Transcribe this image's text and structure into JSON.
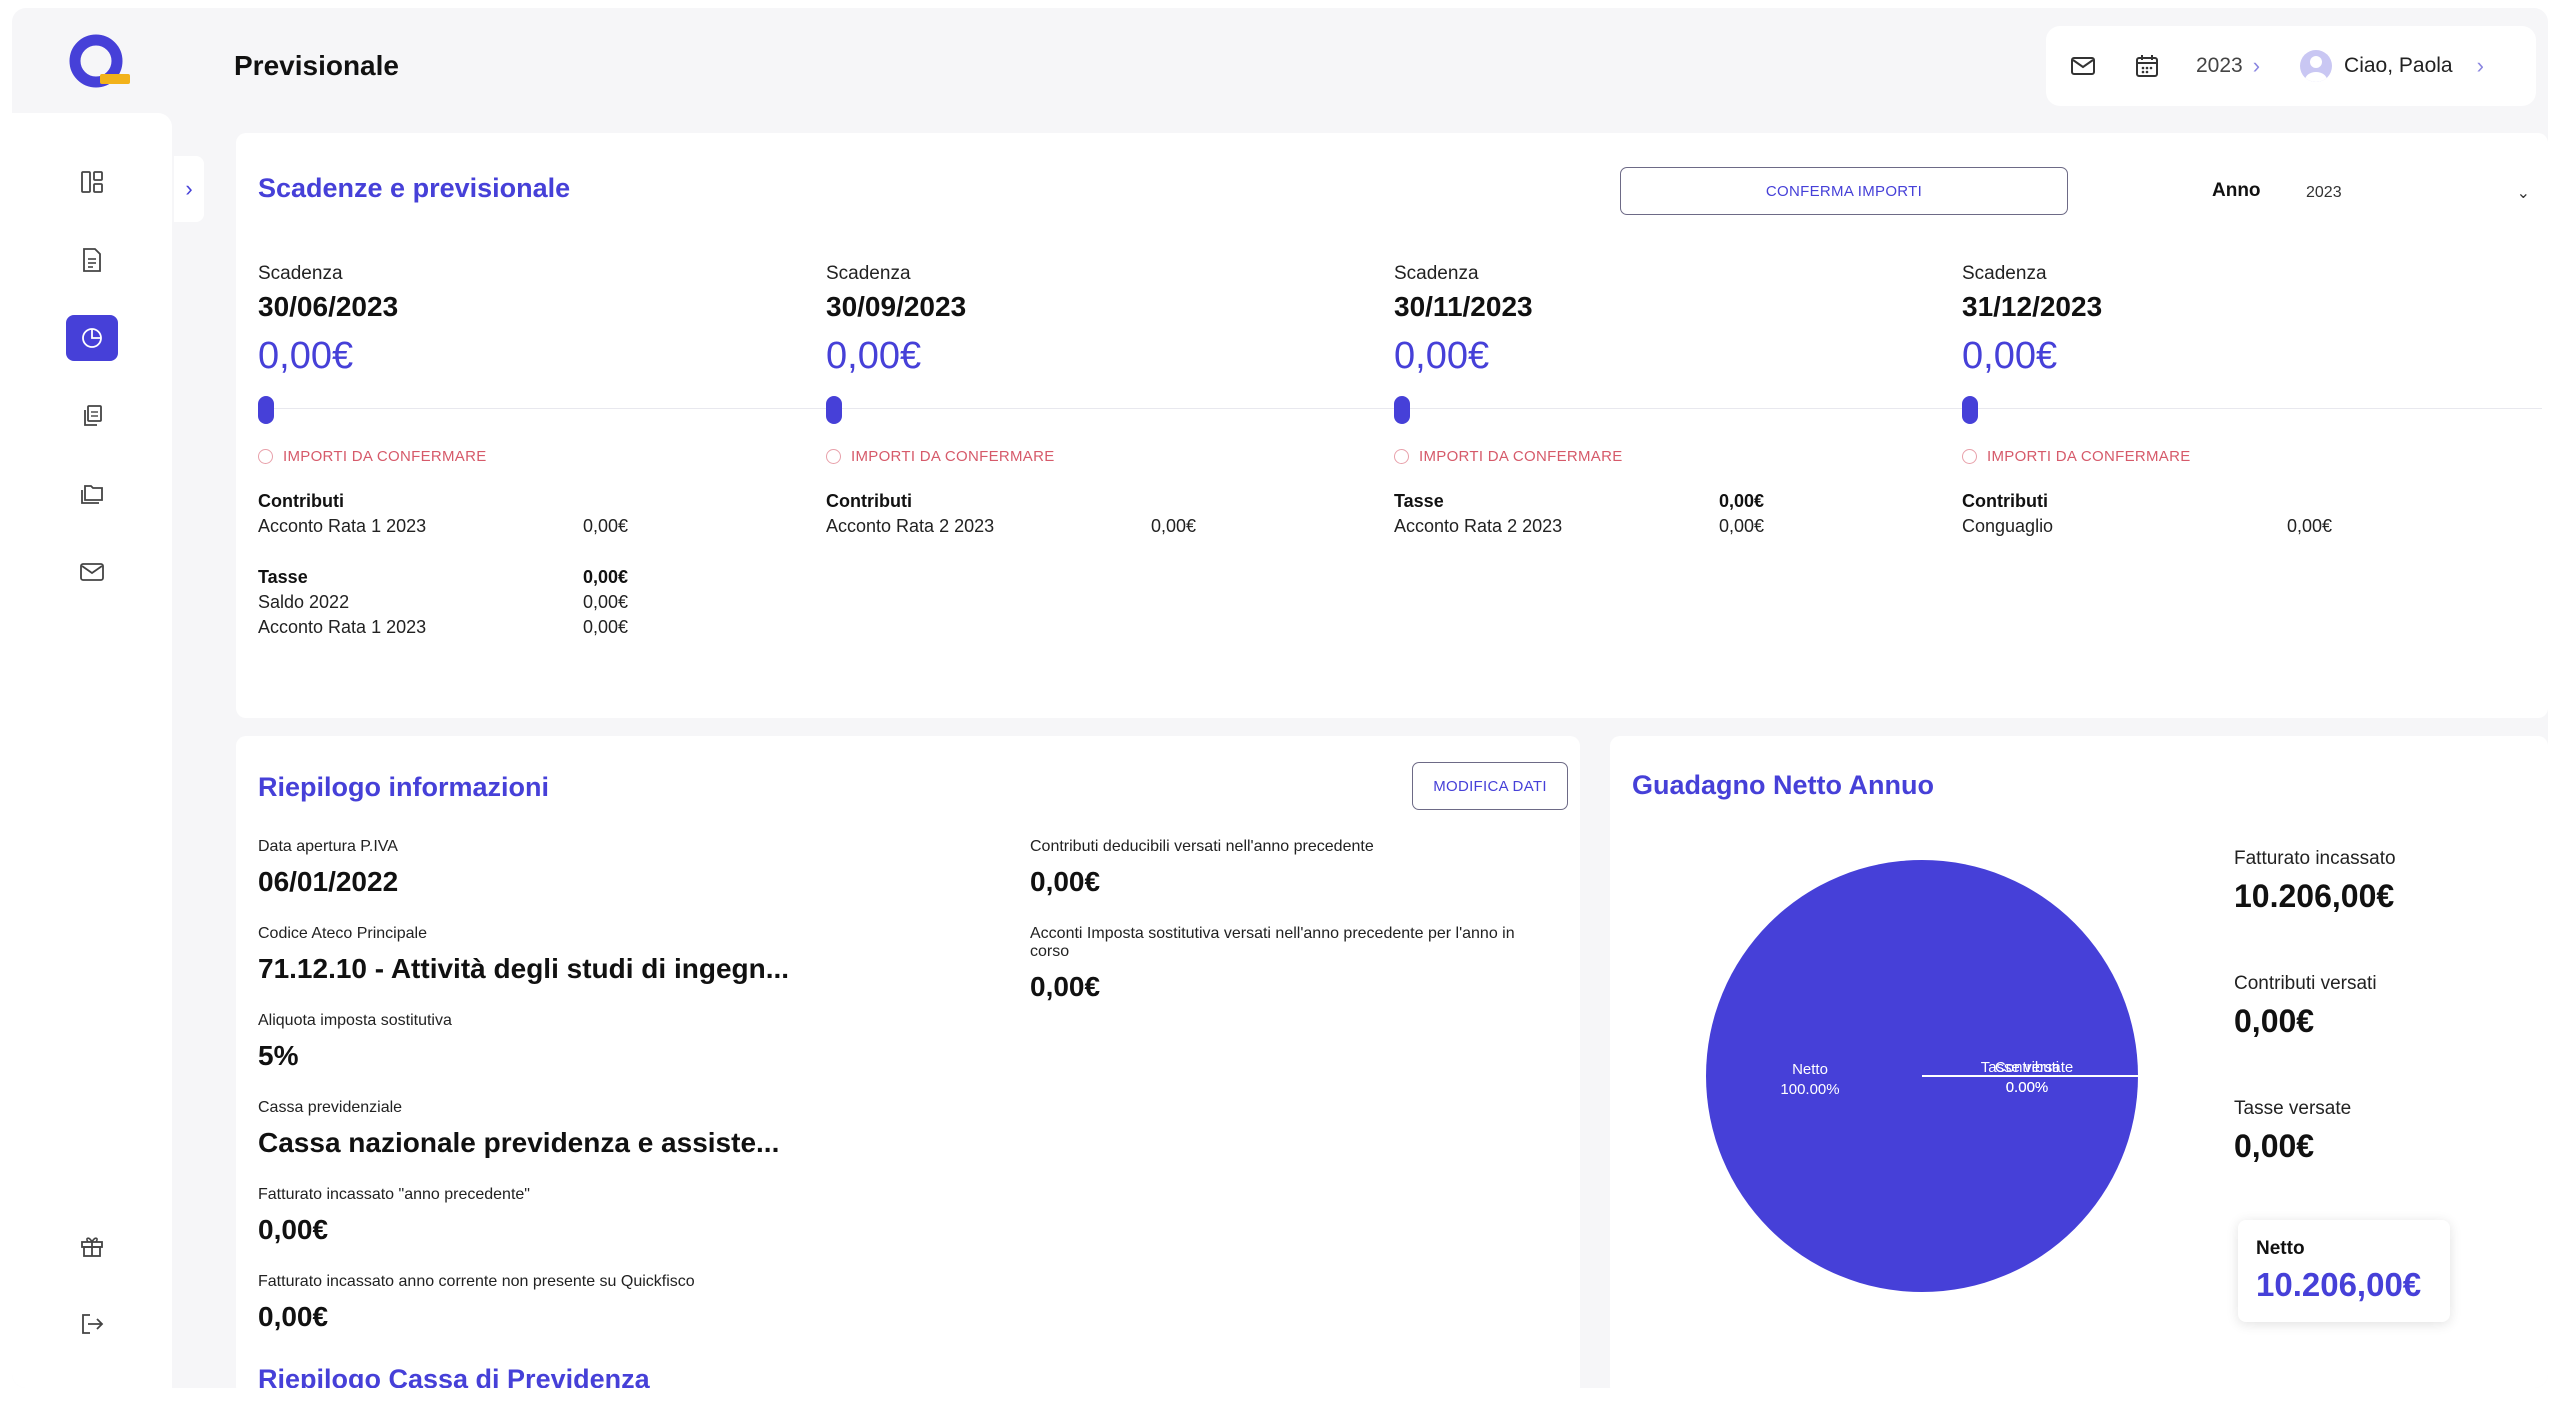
{
  "header": {
    "page_title": "Previsionale",
    "year": "2023",
    "greeting": "Ciao, Paola"
  },
  "sidebar": {
    "items": [
      {
        "icon": "dashboard-icon",
        "active": false
      },
      {
        "icon": "document-icon",
        "active": false
      },
      {
        "icon": "pie-chart-icon",
        "active": true
      },
      {
        "icon": "copy-documents-icon",
        "active": false
      },
      {
        "icon": "folder-icon",
        "active": false
      },
      {
        "icon": "mail-icon",
        "active": false
      }
    ],
    "bottom_items": [
      {
        "icon": "gift-icon"
      },
      {
        "icon": "logout-icon"
      }
    ]
  },
  "colors": {
    "accent": "#4640d8",
    "warning": "#d65a6a",
    "background": "#f6f6f8"
  },
  "scadenze": {
    "title": "Scadenze e previsionale",
    "confirm_button": "CONFERMA IMPORTI",
    "anno_label": "Anno",
    "anno_value": "2023",
    "deadlines": [
      {
        "label": "Scadenza",
        "date": "30/06/2023",
        "amount": "0,00€",
        "status": "IMPORTI DA CONFERMARE",
        "groups": [
          {
            "title": "Contributi",
            "total": "",
            "rows": [
              {
                "label": "Acconto Rata 1 2023",
                "value": "0,00€"
              }
            ]
          },
          {
            "title": "Tasse",
            "total": "0,00€",
            "rows": [
              {
                "label": "Saldo 2022",
                "value": "0,00€"
              },
              {
                "label": "Acconto Rata 1 2023",
                "value": "0,00€"
              }
            ]
          }
        ]
      },
      {
        "label": "Scadenza",
        "date": "30/09/2023",
        "amount": "0,00€",
        "status": "IMPORTI DA CONFERMARE",
        "groups": [
          {
            "title": "Contributi",
            "total": "",
            "rows": [
              {
                "label": "Acconto Rata 2 2023",
                "value": "0,00€"
              }
            ]
          }
        ]
      },
      {
        "label": "Scadenza",
        "date": "30/11/2023",
        "amount": "0,00€",
        "status": "IMPORTI DA CONFERMARE",
        "groups": [
          {
            "title": "Tasse",
            "total": "0,00€",
            "rows": [
              {
                "label": "Acconto Rata 2 2023",
                "value": "0,00€"
              }
            ]
          }
        ]
      },
      {
        "label": "Scadenza",
        "date": "31/12/2023",
        "amount": "0,00€",
        "status": "IMPORTI DA CONFERMARE",
        "groups": [
          {
            "title": "Contributi",
            "total": "",
            "rows": [
              {
                "label": "Conguaglio",
                "value": "0,00€"
              }
            ]
          }
        ]
      }
    ]
  },
  "riepilogo": {
    "title": "Riepilogo informazioni",
    "edit_button": "MODIFICA DATI",
    "left": [
      {
        "label": "Data apertura P.IVA",
        "value": "06/01/2022"
      },
      {
        "label": "Codice Ateco Principale",
        "value": "71.12.10 - Attività degli studi di ingegn..."
      },
      {
        "label": "Aliquota imposta sostitutiva",
        "value": "5%"
      },
      {
        "label": "Cassa previdenziale",
        "value": "Cassa nazionale previdenza e assiste..."
      },
      {
        "label": "Fatturato incassato \"anno precedente\"",
        "value": "0,00€"
      },
      {
        "label": "Fatturato incassato anno corrente non presente su Quickfisco",
        "value": "0,00€"
      }
    ],
    "right": [
      {
        "label": "Contributi deducibili versati nell'anno precedente",
        "value": "0,00€"
      },
      {
        "label": "Acconti Imposta sostitutiva versati nell'anno precedente per l'anno in corso",
        "value": "0,00€"
      }
    ],
    "next_section_title": "Riepilogo Cassa di Previdenza"
  },
  "guadagno": {
    "title": "Guadagno Netto Annuo",
    "kpis": [
      {
        "label": "Fatturato incassato",
        "value": "10.206,00€"
      },
      {
        "label": "Contributi versati",
        "value": "0,00€"
      },
      {
        "label": "Tasse versate",
        "value": "0,00€"
      }
    ],
    "netto_label": "Netto",
    "netto_value": "10.206,00€"
  },
  "chart_data": {
    "type": "pie",
    "categories": [
      "Netto",
      "Contributi",
      "Tasse versate"
    ],
    "values": [
      100.0,
      0.0,
      0.0
    ],
    "labels": [
      "Netto 100.00%",
      "Contributi 0.00%",
      "Tasse versate 0.00%"
    ],
    "slice_texts": [
      {
        "name": "Netto",
        "pct": "100.00%"
      },
      {
        "name": "Contributi",
        "pct": "0.00%"
      },
      {
        "name": "Tasse versate",
        "pct": "0.00%"
      }
    ],
    "title": "",
    "color": "#4640d8"
  }
}
